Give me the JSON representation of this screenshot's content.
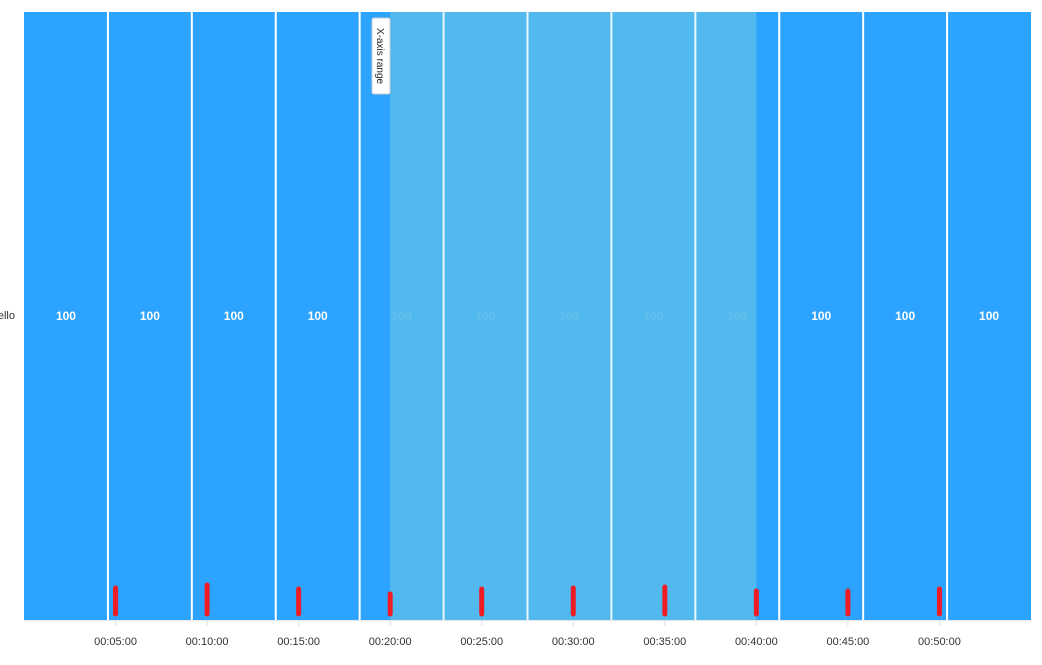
{
  "chart_data": {
    "type": "heatmap",
    "row_label": "ello",
    "x_axis": {
      "domain_minutes": [
        0,
        55
      ],
      "tick_labels": [
        "00:05:00",
        "00:10:00",
        "00:15:00",
        "00:20:00",
        "00:25:00",
        "00:30:00",
        "00:35:00",
        "00:40:00",
        "00:45:00",
        "00:50:00"
      ]
    },
    "cells": [
      100,
      100,
      100,
      100,
      100,
      100,
      100,
      100,
      100,
      100,
      100,
      100
    ],
    "highlight_range": {
      "label": "X-axis range",
      "from": "00:20:00",
      "to": "00:40:00"
    },
    "markers": [
      {
        "time": "00:05:00",
        "value": 26
      },
      {
        "time": "00:10:00",
        "value": 29
      },
      {
        "time": "00:15:00",
        "value": 25
      },
      {
        "time": "00:20:00",
        "value": 20
      },
      {
        "time": "00:25:00",
        "value": 25
      },
      {
        "time": "00:30:00",
        "value": 26
      },
      {
        "time": "00:35:00",
        "value": 27
      },
      {
        "time": "00:40:00",
        "value": 23
      },
      {
        "time": "00:45:00",
        "value": 23
      },
      {
        "time": "00:50:00",
        "value": 25
      }
    ],
    "colors": {
      "cell": "#2ca3ff",
      "highlight": "#56bbed",
      "marker": "#ee1c25",
      "cell_text": "#ffffff"
    }
  }
}
